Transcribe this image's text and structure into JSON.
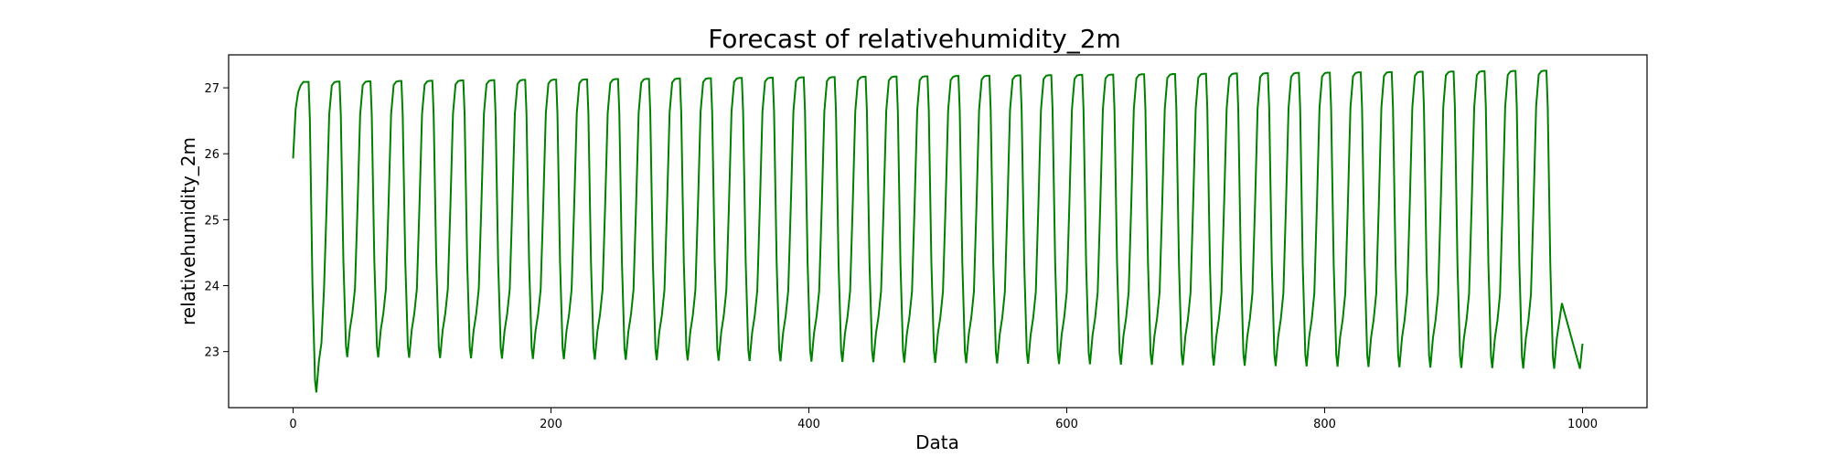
{
  "chart_data": {
    "type": "line",
    "title": "Forecast of relativehumidity_2m",
    "xlabel": "Data",
    "ylabel": "relativehumidity_2m",
    "xlim": [
      -50,
      1050
    ],
    "ylim": [
      22.15,
      27.5
    ],
    "xticks": [
      0,
      200,
      400,
      600,
      800,
      1000
    ],
    "yticks": [
      23,
      24,
      25,
      26,
      27
    ],
    "grid": false,
    "legend": "none",
    "color": "#008000",
    "series": [
      {
        "period": 24,
        "cycles": 41,
        "start_value": 25.93,
        "first_min": 22.38,
        "peak_start": 27.09,
        "peak_end": 27.26,
        "trough_start": 22.92,
        "trough_end": 22.74,
        "last_value": 23.12,
        "x_end": 1000
      }
    ]
  }
}
